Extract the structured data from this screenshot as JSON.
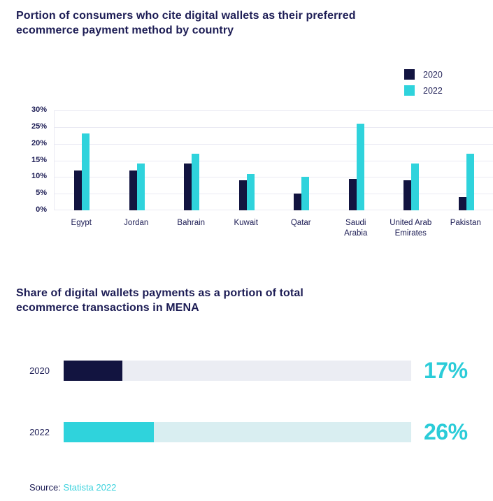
{
  "source": {
    "label": "Source:",
    "text": "Statista 2022"
  },
  "colors": {
    "text_navy": "#1d1d55",
    "bar_navy": "#121440",
    "bar_cyan": "#2fd3dc",
    "value_cyan": "#2bccd8",
    "gridline": "#e9e9f3"
  },
  "chart_data": [
    {
      "type": "bar",
      "title": "Portion of consumers who cite digital wallets as their preferred ecommerce payment method by country",
      "categories": [
        "Egypt",
        "Jordan",
        "Bahrain",
        "Kuwait",
        "Qatar",
        "Saudi\nArabia",
        "United Arab\nEmirates",
        "Pakistan"
      ],
      "series": [
        {
          "name": "2020",
          "color": "#121440",
          "values": [
            12,
            12,
            14,
            9,
            5,
            9.5,
            9,
            4
          ]
        },
        {
          "name": "2022",
          "color": "#2fd3dc",
          "values": [
            23,
            14,
            17,
            11,
            10,
            26,
            14,
            17
          ]
        }
      ],
      "ylim": [
        0,
        30
      ],
      "yticks": [
        0,
        5,
        10,
        15,
        20,
        25,
        30
      ],
      "ytick_suffix": "%",
      "grid": true,
      "legend_position": "top-right"
    },
    {
      "type": "bar",
      "orientation": "horizontal",
      "title": "Share of digital wallets payments as a portion of total ecommerce transactions in MENA",
      "categories": [
        "2020",
        "2022"
      ],
      "values": [
        17,
        26
      ],
      "value_labels": [
        "17%",
        "26%"
      ],
      "bar_colors": [
        "#121440",
        "#2fd3dc"
      ],
      "track_colors": [
        "#ebedf3",
        "#d9eef1"
      ],
      "xlim": [
        0,
        100
      ]
    }
  ]
}
